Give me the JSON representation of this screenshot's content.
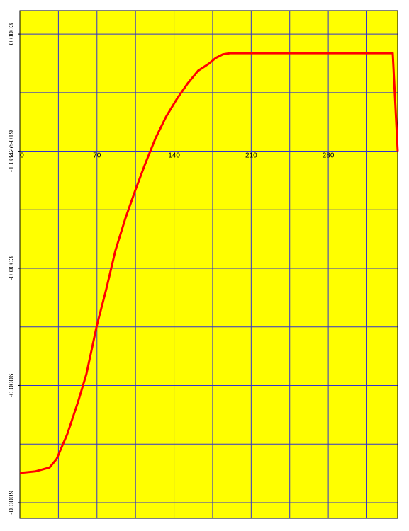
{
  "chart_data": {
    "type": "line",
    "x": [
      0,
      14.1,
      27.0,
      33.4,
      43.0,
      52.7,
      60.4,
      70.0,
      78.4,
      86.7,
      95.7,
      104.7,
      113.7,
      123.3,
      132.9,
      142.6,
      152.2,
      161.8,
      171.5,
      177.9,
      184.3,
      190.7,
      338.5,
      343
    ],
    "series": [
      {
        "color": "#ff0000",
        "values": [
          -0.000824,
          -0.00082,
          -0.00081,
          -0.000788,
          -0.000725,
          -0.000643,
          -0.000571,
          -0.000445,
          -0.000354,
          -0.000255,
          -0.000173,
          -0.000101,
          -3.3e-05,
          3.4e-05,
          8.9e-05,
          0.000134,
          0.000173,
          0.000206,
          0.000224,
          0.000239,
          0.000248,
          0.000251,
          0.000251,
          0
        ]
      }
    ],
    "xlim": [
      0,
      343
    ],
    "ylim": [
      -0.00094,
      0.00036
    ],
    "xticks": [
      0,
      70,
      140,
      210,
      280
    ],
    "yticks": [
      0.0003,
      {
        "value": -1.0842e-19,
        "label": "-1.0842e-019"
      },
      -0.0003,
      -0.0006,
      -0.0009
    ],
    "xgrid": [
      0,
      35,
      70,
      105,
      140,
      175,
      210,
      245,
      280,
      315
    ],
    "ygrid": [
      0.0003,
      0.00015,
      0,
      -0.00015,
      -0.0003,
      -0.00045,
      -0.0006,
      -0.00075,
      -0.0009
    ],
    "grid": true,
    "grid_color": "#3333cc",
    "background": "#ffff00"
  }
}
